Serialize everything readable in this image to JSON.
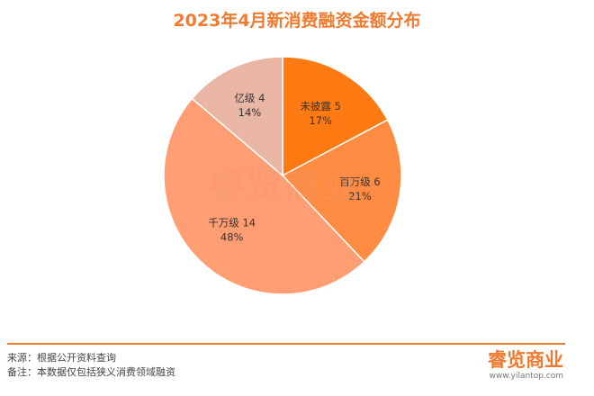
{
  "title": "2023年4月新消费融资金额分布",
  "colors": {
    "accent": "#f07a2f",
    "slices": [
      "#ff7a12",
      "#ff8c42",
      "#ff9d73",
      "#e9b5a5"
    ],
    "watermark": "#f3b89a"
  },
  "chart_data": {
    "type": "pie",
    "title": "2023年4月新消费融资金额分布",
    "start_angle_deg": 0,
    "direction": "clockwise",
    "slices": [
      {
        "label": "未披露 5",
        "name": "未披露",
        "value": 5,
        "percent_label": "17%"
      },
      {
        "label": "百万级 6",
        "name": "百万级",
        "value": 6,
        "percent_label": "21%"
      },
      {
        "label": "千万级 14",
        "name": "千万级",
        "value": 14,
        "percent_label": "48%"
      },
      {
        "label": "亿级 4",
        "name": "亿级",
        "value": 4,
        "percent_label": "14%"
      }
    ]
  },
  "watermark": "睿览商业",
  "footer": {
    "source": "来源：根据公开资料查询",
    "note": "备注：本数据仅包括狭义消费领域融资"
  },
  "logo": {
    "mark": "睿览商业",
    "url": "www.yilantop.com"
  }
}
